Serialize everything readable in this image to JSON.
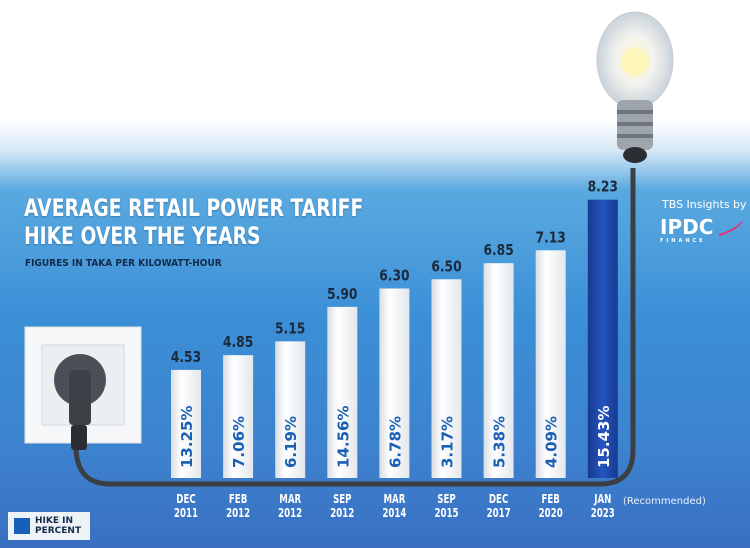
{
  "chart_data": {
    "type": "bar",
    "title": "AVERAGE RETAIL POWER TARIFF HIKE OVER THE YEARS",
    "subtitle": "FIGURES IN TAKA PER KILOWATT-HOUR",
    "categories": [
      [
        "DEC",
        "2011"
      ],
      [
        "FEB",
        "2012"
      ],
      [
        "MAR",
        "2012"
      ],
      [
        "SEP",
        "2012"
      ],
      [
        "MAR",
        "2014"
      ],
      [
        "SEP",
        "2015"
      ],
      [
        "DEC",
        "2017"
      ],
      [
        "FEB",
        "2020"
      ],
      [
        "JAN",
        "2023"
      ]
    ],
    "values": [
      4.53,
      4.85,
      5.15,
      5.9,
      6.3,
      6.5,
      6.85,
      7.13,
      8.23
    ],
    "value_labels": [
      "4.53",
      "4.85",
      "5.15",
      "5.90",
      "6.30",
      "6.50",
      "6.85",
      "7.13",
      "8.23"
    ],
    "hike_percent": [
      "13.25%",
      "7.06%",
      "6.19%",
      "14.56%",
      "6.78%",
      "3.17%",
      "5.38%",
      "4.09%",
      "15.43%"
    ],
    "highlight_index": 8,
    "highlight_note": "(Recommended)",
    "ylim": [
      2.18,
      9.0
    ],
    "grid": false,
    "legend": {
      "label_line1": "HIKE IN",
      "label_line2": "PERCENT",
      "placement": "bottom-left"
    },
    "colors": {
      "bar": "#f4f6f8",
      "highlight_bar": "#1a3f9a",
      "percent_text": "#1a5fb4",
      "value_text": "#1b2a3c",
      "legend_swatch": "#1560b8"
    }
  },
  "branding": {
    "text": "TBS Insights by",
    "logo": "IPDC",
    "logo_sub": "FINANCE"
  }
}
